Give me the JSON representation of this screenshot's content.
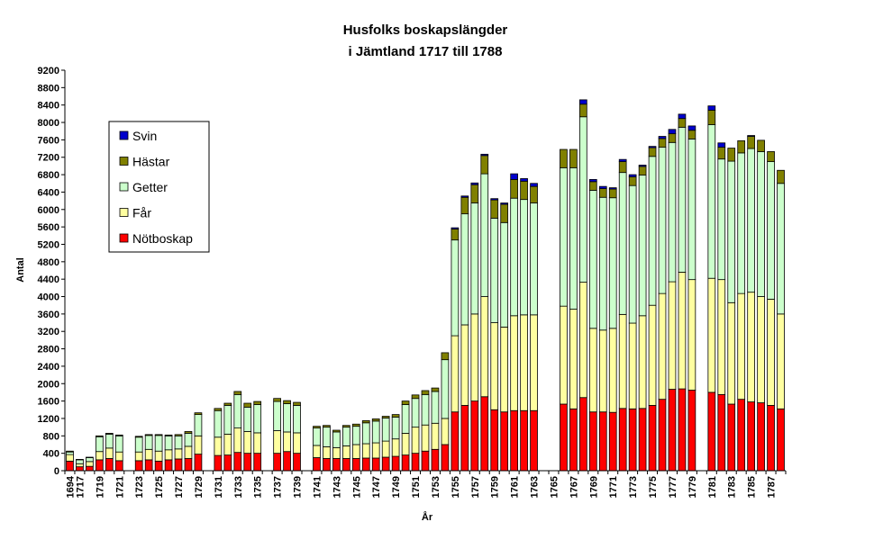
{
  "chart_data": {
    "type": "bar",
    "stacked": true,
    "title_line1": "Husfolks boskapslängder",
    "title_line2": "i Jämtland 1717 till 1788",
    "xlabel": "År",
    "ylabel": "Antal",
    "ylim": [
      0,
      9200
    ],
    "ytick_step": 400,
    "grid": false,
    "legend_position": "left, upper middle",
    "x": [
      1694,
      1717,
      1718,
      1719,
      1720,
      1721,
      1723,
      1724,
      1725,
      1726,
      1727,
      1728,
      1729,
      1731,
      1732,
      1733,
      1734,
      1735,
      1737,
      1738,
      1739,
      1741,
      1742,
      1743,
      1744,
      1745,
      1746,
      1747,
      1748,
      1749,
      1750,
      1751,
      1752,
      1753,
      1754,
      1755,
      1756,
      1757,
      1758,
      1759,
      1760,
      1761,
      1762,
      1763,
      1766,
      1767,
      1768,
      1769,
      1770,
      1771,
      1772,
      1773,
      1774,
      1775,
      1776,
      1777,
      1778,
      1779,
      1781,
      1782,
      1783,
      1784,
      1785,
      1786,
      1787,
      1788
    ],
    "tick_labels": [
      "1694",
      "1717",
      "1719",
      "1721",
      "1723",
      "1725",
      "1727",
      "1729",
      "1731",
      "1733",
      "1735",
      "1737",
      "1739",
      "1741",
      "1743",
      "1745",
      "1747",
      "1749",
      "1751",
      "1753",
      "1755",
      "1757",
      "1759",
      "1761",
      "1763",
      "1765",
      "1767",
      "1769",
      "1771",
      "1773",
      "1775",
      "1777",
      "1779",
      "1781",
      "1783",
      "1785",
      "1787"
    ],
    "series": [
      {
        "name": "Nötboskap",
        "color": "#ff0000",
        "values": [
          220,
          90,
          100,
          250,
          280,
          230,
          230,
          250,
          220,
          250,
          270,
          280,
          380,
          350,
          360,
          420,
          400,
          400,
          400,
          440,
          400,
          300,
          280,
          280,
          280,
          280,
          290,
          290,
          310,
          330,
          360,
          400,
          450,
          490,
          600,
          1350,
          1500,
          1600,
          1700,
          1400,
          1350,
          1380,
          1380,
          1380,
          1530,
          1420,
          1680,
          1350,
          1350,
          1340,
          1430,
          1420,
          1430,
          1500,
          1640,
          1870,
          1880,
          1850,
          1800,
          1750,
          1530,
          1640,
          1580,
          1560,
          1500,
          1420
        ]
      },
      {
        "name": "Får",
        "color": "#ffffa0",
        "values": [
          150,
          70,
          110,
          190,
          240,
          200,
          200,
          240,
          230,
          230,
          230,
          280,
          420,
          420,
          480,
          560,
          500,
          470,
          520,
          450,
          470,
          280,
          270,
          250,
          290,
          320,
          330,
          350,
          370,
          400,
          500,
          600,
          600,
          600,
          600,
          1750,
          1850,
          2000,
          2300,
          2000,
          1950,
          2180,
          2200,
          2200,
          2250,
          2290,
          2650,
          1920,
          1880,
          1930,
          2160,
          1970,
          2130,
          2300,
          2430,
          2470,
          2680,
          2540,
          2620,
          2640,
          2330,
          2430,
          2520,
          2440,
          2440,
          2180
        ]
      },
      {
        "name": "Getter",
        "color": "#ccffcc",
        "values": [
          60,
          90,
          90,
          340,
          320,
          370,
          340,
          320,
          360,
          320,
          300,
          300,
          490,
          610,
          660,
          770,
          560,
          650,
          670,
          650,
          630,
          400,
          450,
          360,
          430,
          420,
          480,
          500,
          530,
          500,
          660,
          660,
          700,
          730,
          1350,
          2200,
          2550,
          2550,
          2820,
          2400,
          2400,
          2700,
          2650,
          2570,
          3180,
          3250,
          3800,
          3170,
          3050,
          3000,
          3260,
          3160,
          3230,
          3420,
          3360,
          3200,
          3330,
          3230,
          3530,
          2770,
          3250,
          3230,
          3300,
          3330,
          3160,
          3000
        ]
      },
      {
        "name": "Hästar",
        "color": "#808000",
        "values": [
          20,
          10,
          10,
          20,
          20,
          20,
          20,
          20,
          20,
          20,
          30,
          40,
          40,
          50,
          50,
          70,
          90,
          70,
          70,
          70,
          70,
          40,
          40,
          40,
          40,
          50,
          50,
          50,
          40,
          60,
          80,
          80,
          90,
          80,
          160,
          250,
          380,
          420,
          420,
          420,
          420,
          430,
          420,
          380,
          420,
          420,
          290,
          200,
          200,
          200,
          250,
          200,
          200,
          200,
          200,
          200,
          200,
          200,
          330,
          270,
          300,
          280,
          280,
          260,
          230,
          300
        ]
      },
      {
        "name": "Svin",
        "color": "#0000cc",
        "values": [
          0,
          0,
          0,
          0,
          0,
          0,
          0,
          0,
          0,
          0,
          0,
          0,
          0,
          0,
          0,
          0,
          0,
          0,
          0,
          0,
          0,
          0,
          0,
          0,
          0,
          0,
          0,
          0,
          0,
          0,
          0,
          0,
          0,
          0,
          0,
          30,
          30,
          40,
          30,
          30,
          30,
          130,
          60,
          70,
          0,
          0,
          100,
          50,
          50,
          30,
          50,
          50,
          30,
          30,
          50,
          100,
          100,
          100,
          100,
          100,
          0,
          0,
          20,
          0,
          0,
          0
        ]
      }
    ]
  }
}
